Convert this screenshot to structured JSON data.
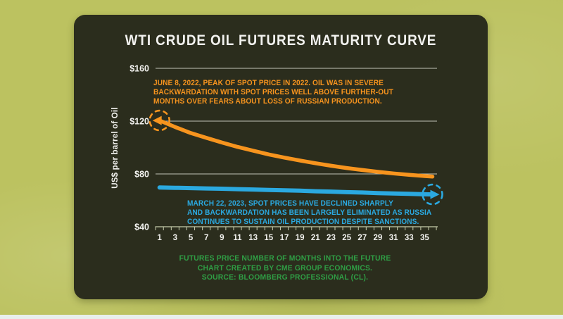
{
  "colors": {
    "background": "#bcc260",
    "strip": "#e8efed",
    "panel": "#2b2d1d",
    "text": "#f2f2ef",
    "gridline": "#dddcd2",
    "tick": "#c7cdad",
    "orange": "#f7941e",
    "blue": "#2ba9e0",
    "green": "#2f9e45"
  },
  "title": "WTI CRUDE OIL FUTURES MATURITY CURVE",
  "y_axis_title": "US$ per barrel of Oil",
  "annotations": {
    "june": {
      "lines": [
        "JUNE 8, 2022, PEAK OF SPOT PRICE IN 2022. OIL WAS IN SEVERE",
        "BACKWARDATION WITH SPOT PRICES WELL ABOVE FURTHER-OUT",
        "MONTHS OVER FEARS ABOUT LOSS OF RUSSIAN PRODUCTION."
      ]
    },
    "march": {
      "lines": [
        "MARCH 22, 2023, SPOT PRICES HAVE DECLINED SHARPLY",
        "AND BACKWARDATION HAS BEEN LARGELY ELIMINATED AS RUSSIA",
        "CONTINUES TO SUSTAIN OIL PRODUCTION DESPITE SANCTIONS."
      ]
    }
  },
  "caption": {
    "lines": [
      "FUTURES PRICE NUMBER OF MONTHS INTO THE FUTURE",
      "CHART CREATED BY CME GROUP ECONOMICS.",
      "SOURCE: BLOOMBERG PROFESSIONAL (CL)."
    ]
  },
  "chart_data": {
    "type": "line",
    "title": "WTI CRUDE OIL FUTURES MATURITY CURVE",
    "xlabel": "Futures price number of months into the future",
    "ylabel": "US$ per barrel of Oil",
    "xlim": [
      1,
      36
    ],
    "ylim": [
      40,
      160
    ],
    "grid": "horizontal",
    "grid_values": [
      80,
      120,
      160
    ],
    "legend_position": "none",
    "x": [
      1,
      3,
      5,
      7,
      9,
      11,
      13,
      15,
      17,
      19,
      21,
      23,
      25,
      27,
      29,
      31,
      33,
      35,
      36
    ],
    "x_tick_labels": [
      "1",
      "3",
      "5",
      "7",
      "9",
      "11",
      "13",
      "15",
      "17",
      "19",
      "21",
      "23",
      "25",
      "27",
      "29",
      "31",
      "33",
      "35"
    ],
    "y_ticks": [
      {
        "label": "$160",
        "value": 160
      },
      {
        "label": "$120",
        "value": 120
      },
      {
        "label": "$80",
        "value": 80
      },
      {
        "label": "$40",
        "value": 40
      }
    ],
    "series": [
      {
        "name": "June 8, 2022 futures curve (severe backwardation)",
        "color": "#f7941e",
        "width": 5.5,
        "start_marker": "arrow-left",
        "highlight": "dashed-circle-at-start",
        "values": [
          120.5,
          115.5,
          111.0,
          107.3,
          103.8,
          100.5,
          97.6,
          94.8,
          92.4,
          90.2,
          88.1,
          86.2,
          84.5,
          83.0,
          81.6,
          80.4,
          79.3,
          78.4,
          78.0
        ]
      },
      {
        "name": "March 22, 2023 futures curve (backwardation largely eliminated)",
        "color": "#2ba9e0",
        "width": 6,
        "end_marker": "arrow-right",
        "highlight": "dashed-circle-at-end",
        "values": [
          69.7,
          69.5,
          69.3,
          69.0,
          68.8,
          68.5,
          68.2,
          67.9,
          67.6,
          67.3,
          66.9,
          66.6,
          66.2,
          65.9,
          65.5,
          65.2,
          64.9,
          64.6,
          64.5
        ]
      }
    ]
  }
}
